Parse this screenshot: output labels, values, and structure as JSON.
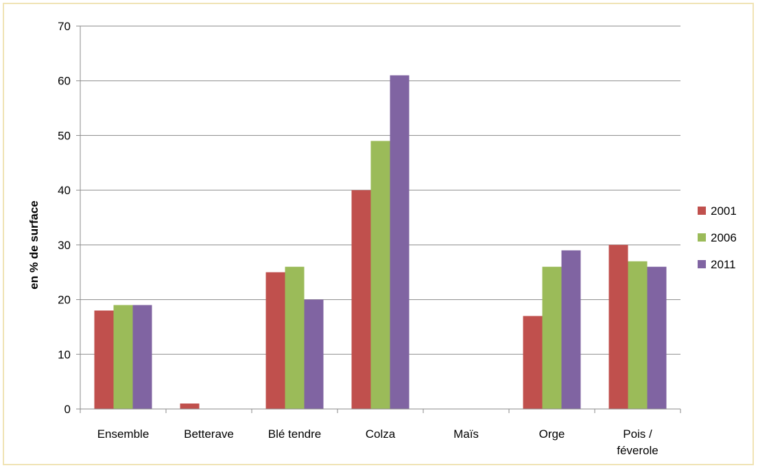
{
  "chart_data": {
    "type": "bar",
    "title": "",
    "xlabel": "",
    "ylabel": "en % de surface",
    "ylim": [
      0,
      70
    ],
    "yticks": [
      0,
      10,
      20,
      30,
      40,
      50,
      60,
      70
    ],
    "grid": true,
    "legend_position": "right",
    "categories": [
      [
        "Ensemble"
      ],
      [
        "Betterave"
      ],
      [
        "Blé tendre"
      ],
      [
        "Colza"
      ],
      [
        "Maïs"
      ],
      [
        "Orge"
      ],
      [
        "Pois /",
        "féverole"
      ]
    ],
    "series": [
      {
        "name": "2001",
        "color": "#c0504d",
        "values": [
          18,
          1,
          25,
          40,
          0,
          17,
          30
        ]
      },
      {
        "name": "2006",
        "color": "#9bbb59",
        "values": [
          19,
          0,
          26,
          49,
          0,
          26,
          27
        ]
      },
      {
        "name": "2011",
        "color": "#8064a2",
        "values": [
          19,
          0,
          20,
          61,
          0,
          29,
          26
        ]
      }
    ]
  }
}
